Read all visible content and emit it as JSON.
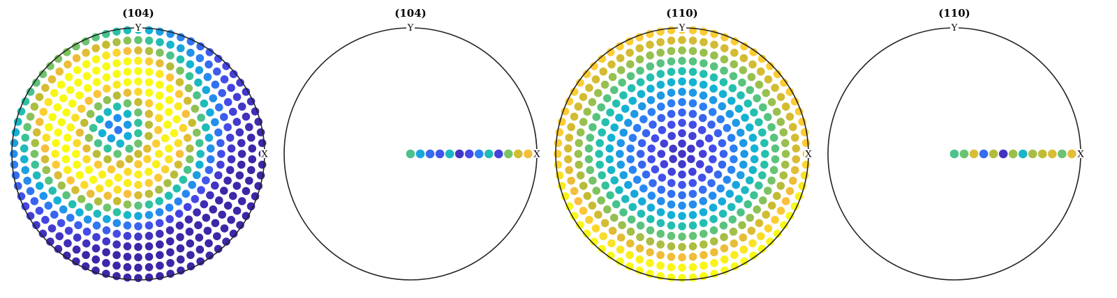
{
  "chart_data": [
    {
      "type": "scatter",
      "title": "(104)",
      "axis_labels": {
        "x": "X",
        "y": "Y"
      },
      "projection": "equal-area pole figure (upper hemisphere)",
      "colormap": "parula",
      "color_range": [
        0,
        1
      ],
      "grid": "polar",
      "polar_sampling": {
        "ring_count": 13,
        "points_per_ring": [
          1,
          6,
          12,
          18,
          24,
          30,
          36,
          42,
          48,
          54,
          60,
          66,
          72
        ]
      },
      "intensity_model": {
        "kind": "ring",
        "center_x": -0.18,
        "center_y": 0.22,
        "peak_radius": 0.45,
        "peak_value": 1.0,
        "width": 0.3,
        "base_value": 0.05,
        "direction_boost": 0.25
      }
    },
    {
      "type": "scatter",
      "title": "(104)",
      "axis_labels": {
        "x": "X",
        "y": "Y"
      },
      "projection": "equal-area pole figure (upper hemisphere)",
      "colormap": "parula",
      "color_range": [
        0,
        1
      ],
      "grid": "polar",
      "line_samples": {
        "direction": "center-to-X",
        "values": [
          0.55,
          0.35,
          0.2,
          0.15,
          0.42,
          0.05,
          0.12,
          0.25,
          0.45,
          0.1,
          0.62,
          0.78,
          0.85
        ]
      }
    },
    {
      "type": "scatter",
      "title": "(110)",
      "axis_labels": {
        "x": "X",
        "y": "Y"
      },
      "projection": "equal-area pole figure (upper hemisphere)",
      "colormap": "parula",
      "color_range": [
        0,
        1
      ],
      "grid": "polar",
      "polar_sampling": {
        "ring_count": 13,
        "points_per_ring": [
          1,
          6,
          12,
          18,
          24,
          30,
          36,
          42,
          48,
          54,
          60,
          66,
          72
        ]
      },
      "intensity_model": {
        "kind": "radial",
        "center_x": 0.0,
        "center_y": 0.0,
        "inner_value": 0.05,
        "outer_value": 0.9,
        "exponent": 1.7,
        "bottom_boost": 0.25
      }
    },
    {
      "type": "scatter",
      "title": "(110)",
      "axis_labels": {
        "x": "X",
        "y": "Y"
      },
      "projection": "equal-area pole figure (upper hemisphere)",
      "colormap": "parula",
      "color_range": [
        0,
        1
      ],
      "grid": "polar",
      "line_samples": {
        "direction": "center-to-X",
        "values": [
          0.55,
          0.6,
          0.8,
          0.2,
          0.72,
          0.05,
          0.68,
          0.42,
          0.7,
          0.74,
          0.8,
          0.6,
          0.82
        ]
      }
    }
  ]
}
